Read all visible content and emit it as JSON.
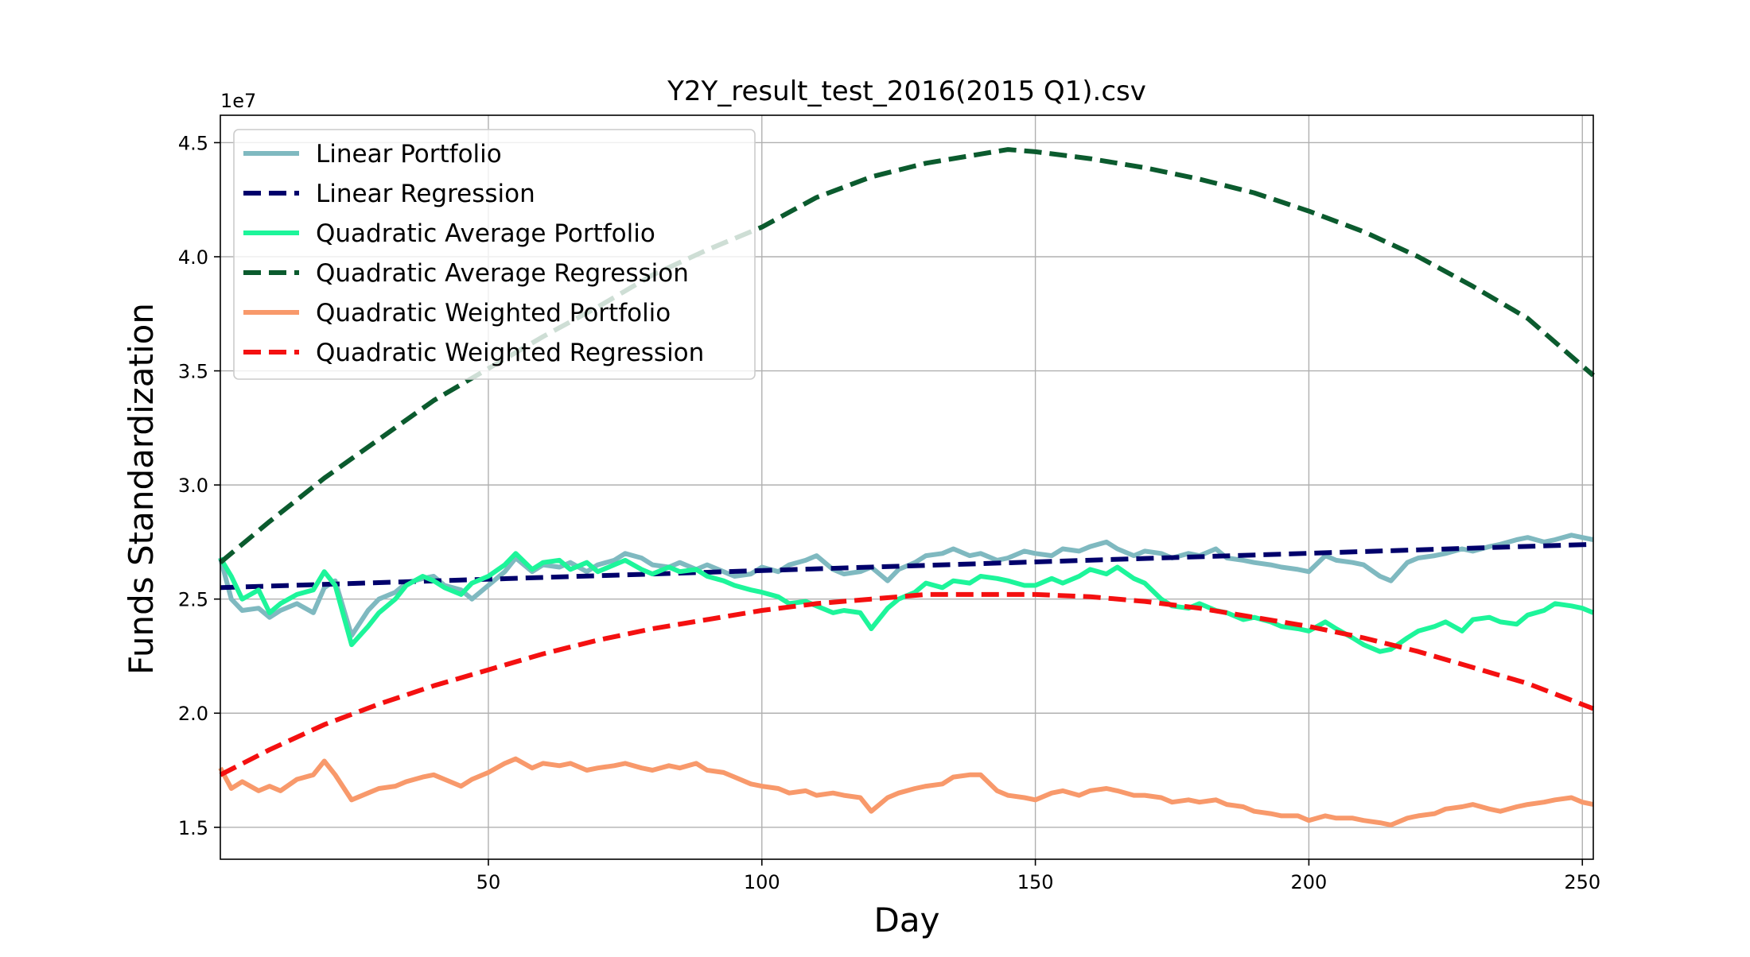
{
  "chart_data": {
    "type": "line",
    "title": "Y2Y_result_test_2016(2015 Q1).csv",
    "xlabel": "Day",
    "ylabel": "Funds Standardization",
    "y_offset_label": "1e7",
    "xlim": [
      1,
      252
    ],
    "ylim": [
      13600000,
      46200000
    ],
    "x_ticks": [
      50,
      100,
      150,
      200,
      250
    ],
    "y_ticks": [
      15000000,
      20000000,
      25000000,
      30000000,
      35000000,
      40000000,
      45000000
    ],
    "x_tick_labels": [
      "50",
      "100",
      "150",
      "200",
      "250"
    ],
    "y_tick_labels": [
      "1.5",
      "2.0",
      "2.5",
      "3.0",
      "3.5",
      "4.0",
      "4.5"
    ],
    "grid": true,
    "legend_position": "upper-left",
    "series": [
      {
        "name": "Linear Portfolio",
        "color": "#7fb9c0",
        "style": "solid",
        "x": [
          1,
          3,
          5,
          8,
          10,
          12,
          15,
          18,
          20,
          22,
          25,
          28,
          30,
          33,
          35,
          38,
          40,
          42,
          45,
          47,
          50,
          53,
          55,
          58,
          60,
          63,
          65,
          68,
          70,
          73,
          75,
          78,
          80,
          83,
          85,
          88,
          90,
          93,
          95,
          98,
          100,
          103,
          105,
          108,
          110,
          113,
          115,
          118,
          120,
          123,
          125,
          128,
          130,
          133,
          135,
          138,
          140,
          143,
          145,
          148,
          150,
          153,
          155,
          158,
          160,
          163,
          165,
          168,
          170,
          173,
          175,
          178,
          180,
          183,
          185,
          188,
          190,
          193,
          195,
          198,
          200,
          203,
          205,
          208,
          210,
          213,
          215,
          218,
          220,
          223,
          225,
          228,
          230,
          233,
          235,
          238,
          240,
          243,
          245,
          248,
          250,
          252
        ],
        "y": [
          26800000,
          25000000,
          24500000,
          24600000,
          24200000,
          24500000,
          24800000,
          24400000,
          25500000,
          25800000,
          23400000,
          24500000,
          25000000,
          25300000,
          25700000,
          25900000,
          26000000,
          25600000,
          25400000,
          25000000,
          25600000,
          26200000,
          26800000,
          26200000,
          26500000,
          26400000,
          26600000,
          26200000,
          26500000,
          26700000,
          27000000,
          26800000,
          26500000,
          26400000,
          26600000,
          26300000,
          26500000,
          26200000,
          26000000,
          26100000,
          26400000,
          26200000,
          26500000,
          26700000,
          26900000,
          26300000,
          26100000,
          26200000,
          26400000,
          25800000,
          26300000,
          26600000,
          26900000,
          27000000,
          27200000,
          26900000,
          27000000,
          26700000,
          26800000,
          27100000,
          27000000,
          26900000,
          27200000,
          27100000,
          27300000,
          27500000,
          27200000,
          26900000,
          27100000,
          27000000,
          26800000,
          27000000,
          26900000,
          27200000,
          26800000,
          26700000,
          26600000,
          26500000,
          26400000,
          26300000,
          26200000,
          26900000,
          26700000,
          26600000,
          26500000,
          26000000,
          25800000,
          26600000,
          26800000,
          26900000,
          27000000,
          27200000,
          27100000,
          27300000,
          27400000,
          27600000,
          27700000,
          27500000,
          27600000,
          27800000,
          27700000,
          27600000
        ]
      },
      {
        "name": "Linear Regression",
        "color": "#00006b",
        "style": "dashed",
        "x": [
          1,
          252
        ],
        "y": [
          25500000,
          27400000
        ]
      },
      {
        "name": "Quadratic Average Portfolio",
        "color": "#1df59a",
        "style": "solid",
        "x": [
          1,
          3,
          5,
          8,
          10,
          12,
          15,
          18,
          20,
          22,
          25,
          28,
          30,
          33,
          35,
          38,
          40,
          42,
          45,
          47,
          50,
          53,
          55,
          58,
          60,
          63,
          65,
          68,
          70,
          73,
          75,
          78,
          80,
          83,
          85,
          88,
          90,
          93,
          95,
          98,
          100,
          103,
          105,
          108,
          110,
          113,
          115,
          118,
          120,
          123,
          125,
          128,
          130,
          133,
          135,
          138,
          140,
          143,
          145,
          148,
          150,
          153,
          155,
          158,
          160,
          163,
          165,
          168,
          170,
          173,
          175,
          178,
          180,
          183,
          185,
          188,
          190,
          193,
          195,
          198,
          200,
          203,
          205,
          208,
          210,
          213,
          215,
          218,
          220,
          223,
          225,
          228,
          230,
          233,
          235,
          238,
          240,
          243,
          245,
          248,
          250,
          252
        ],
        "y": [
          26800000,
          26000000,
          25000000,
          25400000,
          24400000,
          24800000,
          25200000,
          25400000,
          26200000,
          25600000,
          23000000,
          23800000,
          24400000,
          25000000,
          25600000,
          26000000,
          25800000,
          25500000,
          25200000,
          25700000,
          26000000,
          26500000,
          27000000,
          26300000,
          26600000,
          26700000,
          26300000,
          26600000,
          26200000,
          26500000,
          26700000,
          26300000,
          26100000,
          26400000,
          26200000,
          26300000,
          26000000,
          25800000,
          25600000,
          25400000,
          25300000,
          25100000,
          24800000,
          24900000,
          24700000,
          24400000,
          24500000,
          24400000,
          23700000,
          24600000,
          25000000,
          25300000,
          25700000,
          25500000,
          25800000,
          25700000,
          26000000,
          25900000,
          25800000,
          25600000,
          25600000,
          25900000,
          25700000,
          26000000,
          26300000,
          26100000,
          26400000,
          25900000,
          25700000,
          25000000,
          24700000,
          24600000,
          24800000,
          24500000,
          24400000,
          24100000,
          24200000,
          24000000,
          23800000,
          23700000,
          23600000,
          24000000,
          23700000,
          23300000,
          23000000,
          22700000,
          22800000,
          23300000,
          23600000,
          23800000,
          24000000,
          23600000,
          24100000,
          24200000,
          24000000,
          23900000,
          24300000,
          24500000,
          24800000,
          24700000,
          24600000,
          24400000
        ]
      },
      {
        "name": "Quadratic Average Regression",
        "color": "#0b5b2e",
        "style": "dashed",
        "x": [
          1,
          10,
          20,
          30,
          40,
          50,
          60,
          70,
          80,
          90,
          100,
          110,
          120,
          130,
          140,
          145,
          150,
          160,
          170,
          180,
          190,
          200,
          210,
          220,
          230,
          240,
          252
        ],
        "y": [
          26600000,
          28400000,
          30300000,
          32000000,
          33700000,
          35100000,
          36500000,
          37800000,
          39200000,
          40300000,
          41300000,
          42600000,
          43500000,
          44100000,
          44500000,
          44700000,
          44600000,
          44300000,
          43900000,
          43400000,
          42800000,
          42000000,
          41100000,
          40000000,
          38700000,
          37300000,
          34800000
        ]
      },
      {
        "name": "Quadratic Weighted Portfolio",
        "color": "#f8996b",
        "style": "solid",
        "x": [
          1,
          3,
          5,
          8,
          10,
          12,
          15,
          18,
          20,
          22,
          25,
          28,
          30,
          33,
          35,
          38,
          40,
          42,
          45,
          47,
          50,
          53,
          55,
          58,
          60,
          63,
          65,
          68,
          70,
          73,
          75,
          78,
          80,
          83,
          85,
          88,
          90,
          93,
          95,
          98,
          100,
          103,
          105,
          108,
          110,
          113,
          115,
          118,
          120,
          123,
          125,
          128,
          130,
          133,
          135,
          138,
          140,
          143,
          145,
          148,
          150,
          153,
          155,
          158,
          160,
          163,
          165,
          168,
          170,
          173,
          175,
          178,
          180,
          183,
          185,
          188,
          190,
          193,
          195,
          198,
          200,
          203,
          205,
          208,
          210,
          213,
          215,
          218,
          220,
          223,
          225,
          228,
          230,
          233,
          235,
          238,
          240,
          243,
          245,
          248,
          250,
          252
        ],
        "y": [
          17600000,
          16700000,
          17000000,
          16600000,
          16800000,
          16600000,
          17100000,
          17300000,
          17900000,
          17300000,
          16200000,
          16500000,
          16700000,
          16800000,
          17000000,
          17200000,
          17300000,
          17100000,
          16800000,
          17100000,
          17400000,
          17800000,
          18000000,
          17600000,
          17800000,
          17700000,
          17800000,
          17500000,
          17600000,
          17700000,
          17800000,
          17600000,
          17500000,
          17700000,
          17600000,
          17800000,
          17500000,
          17400000,
          17200000,
          16900000,
          16800000,
          16700000,
          16500000,
          16600000,
          16400000,
          16500000,
          16400000,
          16300000,
          15700000,
          16300000,
          16500000,
          16700000,
          16800000,
          16900000,
          17200000,
          17300000,
          17300000,
          16600000,
          16400000,
          16300000,
          16200000,
          16500000,
          16600000,
          16400000,
          16600000,
          16700000,
          16600000,
          16400000,
          16400000,
          16300000,
          16100000,
          16200000,
          16100000,
          16200000,
          16000000,
          15900000,
          15700000,
          15600000,
          15500000,
          15500000,
          15300000,
          15500000,
          15400000,
          15400000,
          15300000,
          15200000,
          15100000,
          15400000,
          15500000,
          15600000,
          15800000,
          15900000,
          16000000,
          15800000,
          15700000,
          15900000,
          16000000,
          16100000,
          16200000,
          16300000,
          16100000,
          16000000
        ]
      },
      {
        "name": "Quadratic Weighted Regression",
        "color": "#f41010",
        "style": "dashed",
        "x": [
          1,
          10,
          20,
          30,
          40,
          50,
          60,
          70,
          80,
          90,
          100,
          110,
          120,
          130,
          140,
          145,
          150,
          160,
          170,
          180,
          190,
          200,
          210,
          220,
          230,
          240,
          252
        ],
        "y": [
          17300000,
          18400000,
          19500000,
          20400000,
          21200000,
          21900000,
          22600000,
          23200000,
          23700000,
          24100000,
          24500000,
          24800000,
          25000000,
          25200000,
          25200000,
          25200000,
          25200000,
          25100000,
          24900000,
          24600000,
          24200000,
          23800000,
          23300000,
          22700000,
          22000000,
          21300000,
          20200000
        ]
      }
    ]
  }
}
